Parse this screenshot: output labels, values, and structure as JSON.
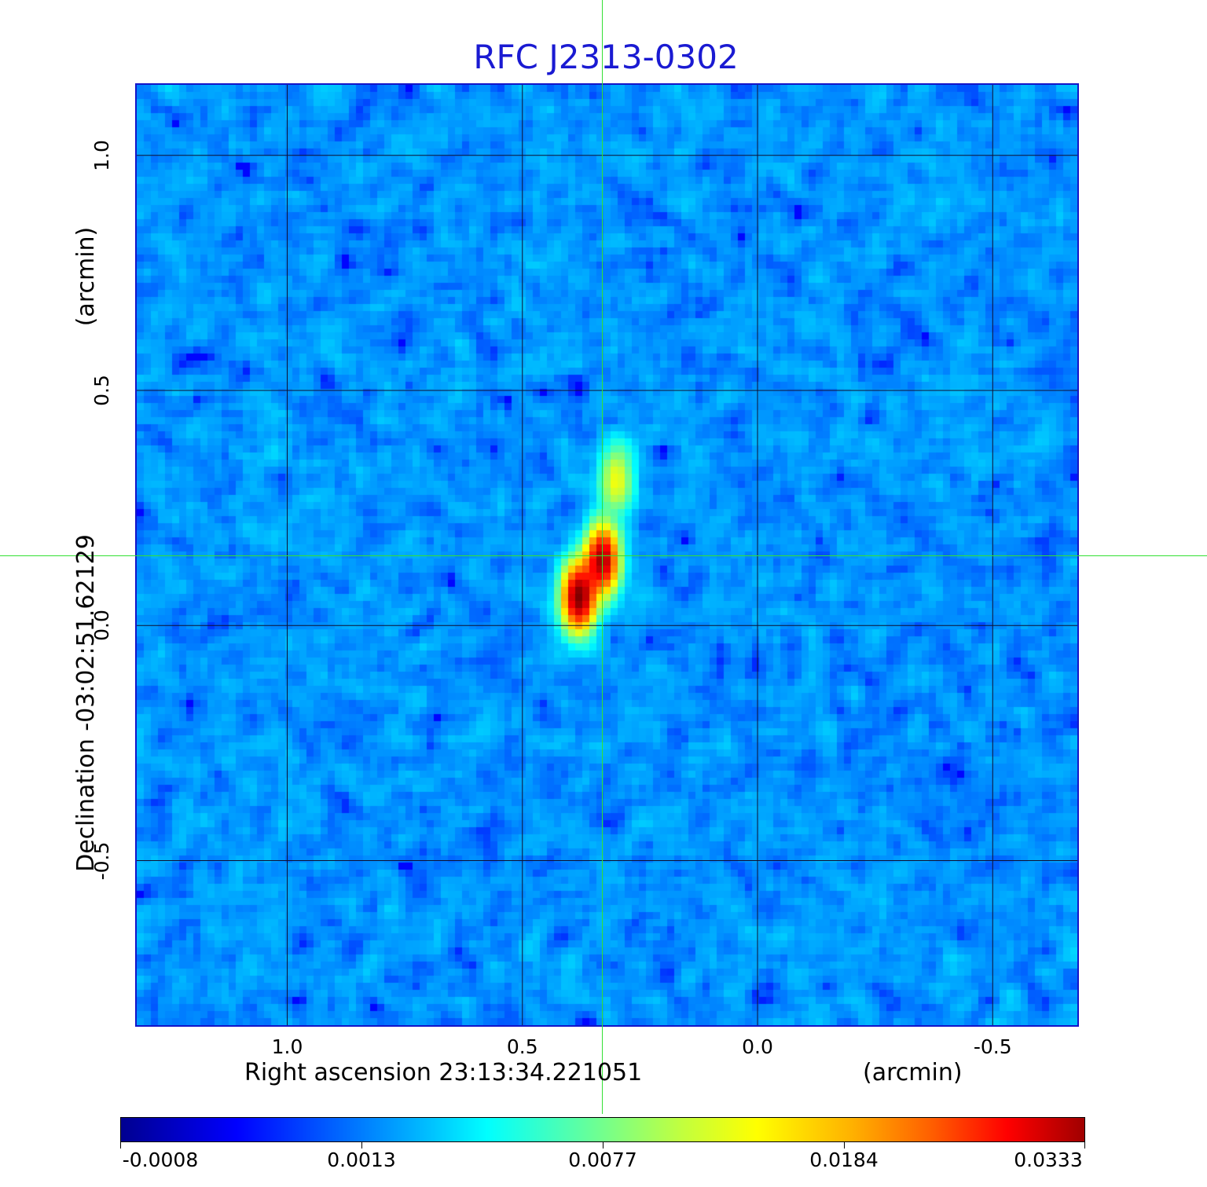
{
  "title": "RFC J2313-0302",
  "x_axis": {
    "label": "Right ascension  23:13:34.221051",
    "unit": "(arcmin)",
    "ticks": [
      {
        "value": 1.0,
        "label": "1.0"
      },
      {
        "value": 0.5,
        "label": "0.5"
      },
      {
        "value": 0.0,
        "label": "0.0"
      },
      {
        "value": -0.5,
        "label": "-0.5"
      }
    ]
  },
  "y_axis": {
    "label": "Declination  -03:02:51.62129",
    "unit": "(arcmin)",
    "ticks": [
      {
        "value": 1.0,
        "label": "1.0"
      },
      {
        "value": 0.5,
        "label": "0.5"
      },
      {
        "value": 0.0,
        "label": "0.0"
      },
      {
        "value": -0.5,
        "label": "-0.5"
      }
    ]
  },
  "colorbar": {
    "ticks": [
      "-0.0008",
      "0.0013",
      "0.0077",
      "0.0184",
      "0.0333"
    ]
  },
  "chart_data": {
    "type": "heatmap",
    "title": "RFC J2313-0302",
    "xlabel": "Right ascension  23:13:34.221051",
    "ylabel": "Declination  -03:02:51.62129",
    "unit": "arcmin",
    "xlim": [
      1.32,
      -0.68
    ],
    "ylim": [
      -0.85,
      1.15
    ],
    "grid": true,
    "crosshair": {
      "x": 0.33,
      "y": 0.14
    },
    "colormap": "jet",
    "colorscale_ticks": [
      -0.0008,
      0.0013,
      0.0077,
      0.0184,
      0.0333
    ],
    "components": [
      {
        "x": 0.38,
        "y": 0.06,
        "peak": 0.0333
      },
      {
        "x": 0.33,
        "y": 0.14,
        "peak": 0.03
      },
      {
        "x": 0.3,
        "y": 0.31,
        "peak": 0.009
      }
    ],
    "background_level": -0.0002
  }
}
